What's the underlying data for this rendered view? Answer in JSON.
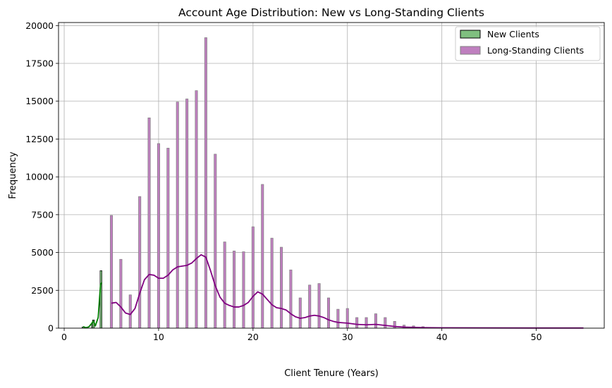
{
  "chart_data": {
    "type": "histogram",
    "title": "Account Age Distribution: New vs Long-Standing Clients",
    "xlabel": "Client Tenure (Years)",
    "ylabel": "Frequency",
    "xlim": [
      -0.6,
      57.2
    ],
    "ylim": [
      0,
      20200
    ],
    "x_ticks": [
      0,
      10,
      20,
      30,
      40,
      50
    ],
    "x_tick_labels": [
      "0",
      "10",
      "20",
      "30",
      "40",
      "50"
    ],
    "y_ticks": [
      0,
      2500,
      5000,
      7500,
      10000,
      12500,
      15000,
      17500,
      20000
    ],
    "y_tick_labels": [
      "0",
      "2500",
      "5000",
      "7500",
      "10000",
      "12500",
      "15000",
      "17500",
      "20000"
    ],
    "grid": true,
    "legend": {
      "position": "top-right",
      "entries": [
        {
          "label": "New Clients",
          "color": "#7fbf7f",
          "edge": "#000000"
        },
        {
          "label": "Long-Standing Clients",
          "color": "#bf7fbf",
          "edge": "#808080"
        }
      ]
    },
    "series": [
      {
        "name": "New Clients",
        "fill_color": "#7fbf7f",
        "edge_color": "#000000",
        "kde_color": "#008000",
        "bar_width": 0.2,
        "bars": [
          {
            "x": 2.0,
            "y": 80
          },
          {
            "x": 2.3,
            "y": 40
          },
          {
            "x": 3.0,
            "y": 300
          },
          {
            "x": 3.1,
            "y": 540
          },
          {
            "x": 3.9,
            "y": 3800
          }
        ],
        "kde": [
          [
            2.0,
            100
          ],
          [
            2.3,
            30
          ],
          [
            2.6,
            80
          ],
          [
            2.9,
            300
          ],
          [
            3.1,
            480
          ],
          [
            3.3,
            150
          ],
          [
            3.6,
            700
          ],
          [
            3.85,
            2900
          ],
          [
            4.0,
            3000
          ]
        ]
      },
      {
        "name": "Long-Standing Clients",
        "fill_color": "#bf7fbf",
        "edge_color": "#808080",
        "kde_color": "#800080",
        "bar_width": 0.25,
        "bars": [
          {
            "x": 5,
            "y": 7450
          },
          {
            "x": 6,
            "y": 4550
          },
          {
            "x": 7,
            "y": 2200
          },
          {
            "x": 8,
            "y": 8700
          },
          {
            "x": 9,
            "y": 13900
          },
          {
            "x": 10,
            "y": 12200
          },
          {
            "x": 11,
            "y": 11900
          },
          {
            "x": 12,
            "y": 14950
          },
          {
            "x": 13,
            "y": 15150
          },
          {
            "x": 14,
            "y": 15700
          },
          {
            "x": 15,
            "y": 19200
          },
          {
            "x": 16,
            "y": 11500
          },
          {
            "x": 17,
            "y": 5700
          },
          {
            "x": 18,
            "y": 5100
          },
          {
            "x": 19,
            "y": 5050
          },
          {
            "x": 20,
            "y": 6700
          },
          {
            "x": 21,
            "y": 9500
          },
          {
            "x": 22,
            "y": 5950
          },
          {
            "x": 23,
            "y": 5350
          },
          {
            "x": 24,
            "y": 3850
          },
          {
            "x": 25,
            "y": 2000
          },
          {
            "x": 26,
            "y": 2850
          },
          {
            "x": 27,
            "y": 2950
          },
          {
            "x": 28,
            "y": 2000
          },
          {
            "x": 29,
            "y": 1250
          },
          {
            "x": 30,
            "y": 1300
          },
          {
            "x": 31,
            "y": 700
          },
          {
            "x": 32,
            "y": 700
          },
          {
            "x": 33,
            "y": 950
          },
          {
            "x": 34,
            "y": 700
          },
          {
            "x": 35,
            "y": 450
          },
          {
            "x": 36,
            "y": 200
          },
          {
            "x": 37,
            "y": 150
          },
          {
            "x": 38,
            "y": 100
          }
        ],
        "kde": [
          [
            5.0,
            1650
          ],
          [
            5.5,
            1700
          ],
          [
            6.0,
            1400
          ],
          [
            6.5,
            1000
          ],
          [
            7.0,
            900
          ],
          [
            7.5,
            1300
          ],
          [
            8.0,
            2300
          ],
          [
            8.5,
            3200
          ],
          [
            9.0,
            3550
          ],
          [
            9.5,
            3500
          ],
          [
            10.0,
            3300
          ],
          [
            10.5,
            3300
          ],
          [
            11.0,
            3500
          ],
          [
            11.5,
            3850
          ],
          [
            12.0,
            4050
          ],
          [
            12.5,
            4100
          ],
          [
            13.0,
            4150
          ],
          [
            13.5,
            4300
          ],
          [
            14.0,
            4600
          ],
          [
            14.5,
            4850
          ],
          [
            15.0,
            4700
          ],
          [
            15.5,
            3800
          ],
          [
            16.0,
            2800
          ],
          [
            16.5,
            2050
          ],
          [
            17.0,
            1650
          ],
          [
            17.5,
            1500
          ],
          [
            18.0,
            1400
          ],
          [
            18.5,
            1400
          ],
          [
            19.0,
            1500
          ],
          [
            19.5,
            1700
          ],
          [
            20.0,
            2100
          ],
          [
            20.5,
            2400
          ],
          [
            21.0,
            2250
          ],
          [
            21.5,
            1900
          ],
          [
            22.0,
            1550
          ],
          [
            22.5,
            1350
          ],
          [
            23.0,
            1300
          ],
          [
            23.5,
            1200
          ],
          [
            24.0,
            950
          ],
          [
            24.5,
            750
          ],
          [
            25.0,
            650
          ],
          [
            25.5,
            700
          ],
          [
            26.0,
            800
          ],
          [
            26.5,
            850
          ],
          [
            27.0,
            800
          ],
          [
            27.5,
            700
          ],
          [
            28.0,
            550
          ],
          [
            28.5,
            450
          ],
          [
            29.0,
            380
          ],
          [
            30.0,
            330
          ],
          [
            31.0,
            250
          ],
          [
            32.0,
            220
          ],
          [
            33.0,
            250
          ],
          [
            34.0,
            180
          ],
          [
            35.0,
            110
          ],
          [
            36.0,
            70
          ],
          [
            37.0,
            50
          ],
          [
            38.0,
            35
          ],
          [
            40.0,
            20
          ],
          [
            45.0,
            15
          ],
          [
            50.0,
            10
          ],
          [
            55.0,
            8
          ]
        ]
      }
    ]
  }
}
